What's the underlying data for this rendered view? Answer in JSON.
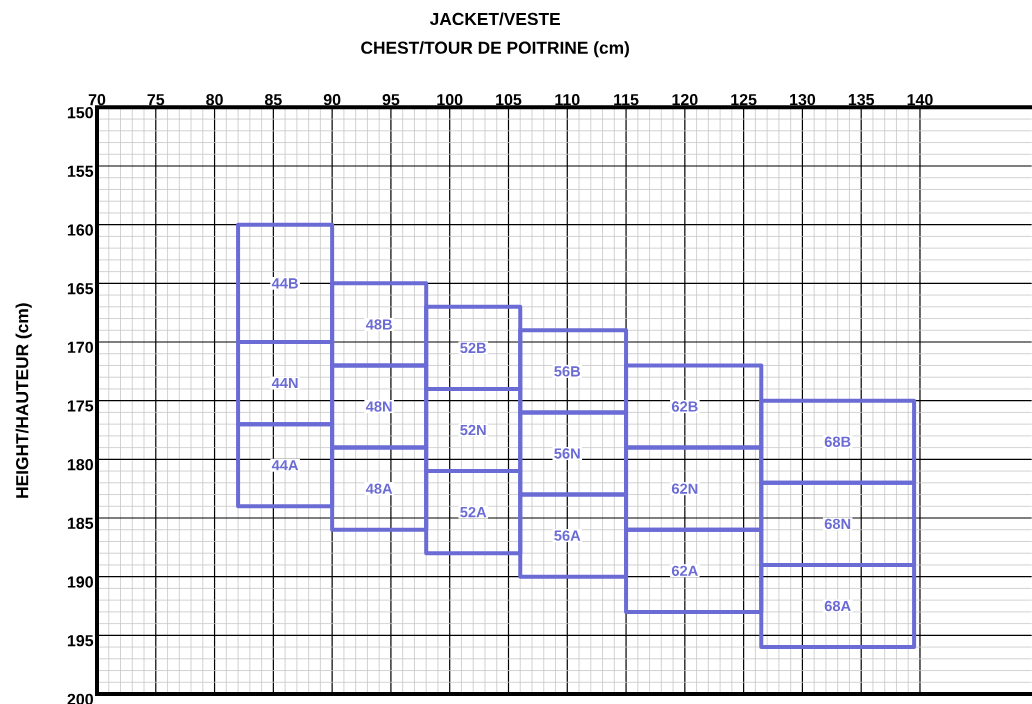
{
  "chart_data": {
    "type": "bar",
    "title": "JACKET/VESTE",
    "xlabel": "CHEST/TOUR DE POITRINE (cm)",
    "ylabel": "HEIGHT/HAUTEUR (cm)",
    "x": [
      86,
      94,
      102,
      110,
      120,
      133
    ],
    "series": [
      {
        "color": "#6b6bd6",
        "base": [
          160,
          165,
          167,
          169,
          172,
          175
        ],
        "values": [
          10,
          7,
          7,
          7,
          7,
          7
        ]
      },
      {
        "color": "#6b6bd6",
        "base": [
          170,
          172,
          174,
          176,
          179,
          182
        ],
        "values": [
          7,
          7,
          7,
          7,
          7,
          7
        ]
      },
      {
        "color": "#6b6bd6",
        "base": [
          177,
          179,
          181,
          183,
          186,
          189
        ],
        "values": [
          7,
          7,
          7,
          7,
          7,
          7
        ]
      }
    ],
    "annotations": [
      "44B",
      "48B",
      "52B",
      "56B",
      "62B",
      "68B",
      "44N",
      "48N",
      "52N",
      "56N",
      "62N",
      "68N",
      "44A",
      "48A",
      "52A",
      "56A",
      "62A",
      "68A"
    ],
    "xlim": [
      70,
      149.5
    ],
    "xticks": [
      70,
      75,
      80,
      85,
      90,
      95,
      100,
      105,
      110,
      115,
      120,
      125,
      130,
      135,
      140
    ],
    "ylim": [
      200,
      150
    ],
    "yticks": [
      150,
      155,
      160,
      165,
      170,
      175,
      180,
      185,
      190,
      195,
      200
    ],
    "grid": true,
    "legend": false
  }
}
